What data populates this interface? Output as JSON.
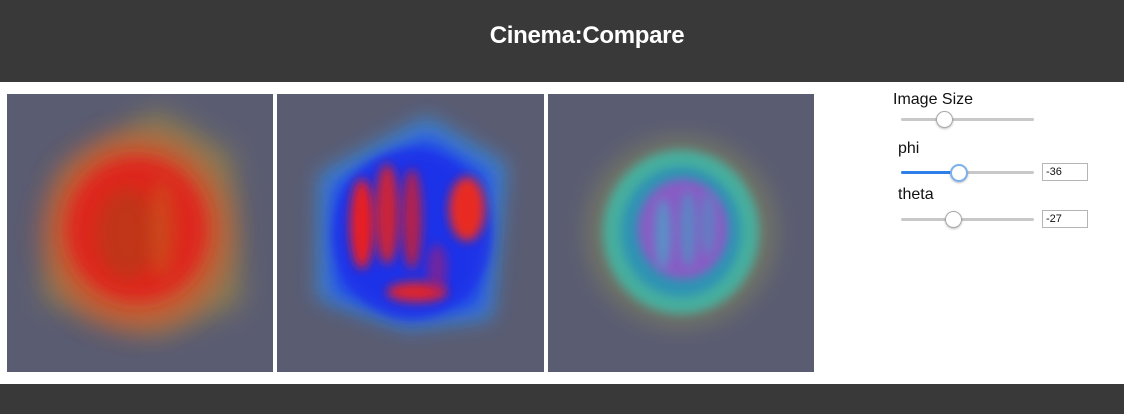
{
  "header": {
    "title": "Cinema:Compare"
  },
  "viewers": [
    {
      "name": "left-view"
    },
    {
      "name": "middle-view"
    },
    {
      "name": "right-view"
    }
  ],
  "controls": {
    "image_size": {
      "label": "Image Size",
      "value_fraction": 0.32
    },
    "phi": {
      "label": "phi",
      "value": "-36",
      "value_fraction": 0.43
    },
    "theta": {
      "label": "theta",
      "value": "-27",
      "value_fraction": 0.4
    }
  },
  "colors": {
    "header_bg": "#393939",
    "viewer_bg": "#5a5c72",
    "slider_active": "#2f7fe8"
  }
}
